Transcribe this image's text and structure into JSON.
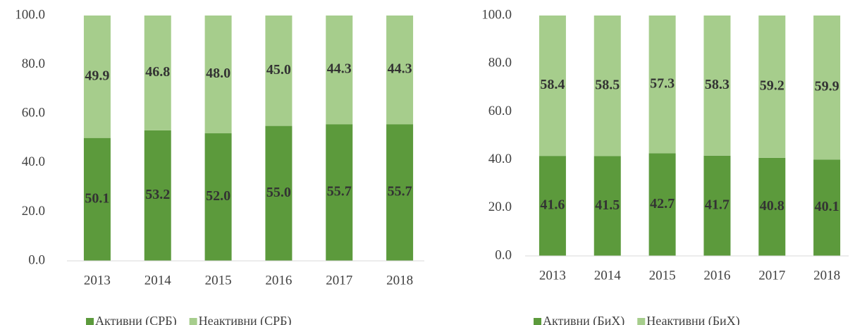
{
  "chart_data": [
    {
      "type": "stacked_bar",
      "categories": [
        "2013",
        "2014",
        "2015",
        "2016",
        "2017",
        "2018"
      ],
      "series": [
        {
          "name": "Активни (СРБ)",
          "color": "#5c9a3c",
          "values": [
            50.1,
            53.2,
            52.0,
            55.0,
            55.7,
            55.7
          ],
          "value_labels": [
            "50.1",
            "53.2",
            "52.0",
            "55.0",
            "55.7",
            "55.7"
          ]
        },
        {
          "name": "Неактивни (СРБ)",
          "color": "#a6cd8c",
          "values": [
            49.9,
            46.8,
            48.0,
            45.0,
            44.3,
            44.3
          ],
          "value_labels": [
            "49.9",
            "46.8",
            "48.0",
            "45.0",
            "44.3",
            "44.3"
          ]
        }
      ],
      "ylim": [
        0,
        100
      ],
      "yticks": [
        {
          "value": 0,
          "label": "0.0"
        },
        {
          "value": 20,
          "label": "20.0"
        },
        {
          "value": 40,
          "label": "40.0"
        },
        {
          "value": 60,
          "label": "60.0"
        },
        {
          "value": 80,
          "label": "80.0"
        },
        {
          "value": 100,
          "label": "100.0"
        }
      ],
      "legend": "bottom"
    },
    {
      "type": "stacked_bar",
      "categories": [
        "2013",
        "2014",
        "2015",
        "2016",
        "2017",
        "2018"
      ],
      "series": [
        {
          "name": "Активни (БиХ)",
          "color": "#5c9a3c",
          "values": [
            41.6,
            41.5,
            42.7,
            41.7,
            40.8,
            40.1
          ],
          "value_labels": [
            "41.6",
            "41.5",
            "42.7",
            "41.7",
            "40.8",
            "40.1"
          ]
        },
        {
          "name": "Неактивни (БиХ)",
          "color": "#a6cd8c",
          "values": [
            58.4,
            58.5,
            57.3,
            58.3,
            59.2,
            59.9
          ],
          "value_labels": [
            "58.4",
            "58.5",
            "57.3",
            "58.3",
            "59.2",
            "59.9"
          ]
        }
      ],
      "ylim": [
        0,
        100
      ],
      "yticks": [
        {
          "value": 0,
          "label": "0.0"
        },
        {
          "value": 20,
          "label": "20.0"
        },
        {
          "value": 40,
          "label": "40.0"
        },
        {
          "value": 60,
          "label": "60.0"
        },
        {
          "value": 80,
          "label": "80.0"
        },
        {
          "value": 100,
          "label": "100.0"
        }
      ],
      "legend": "bottom"
    }
  ]
}
